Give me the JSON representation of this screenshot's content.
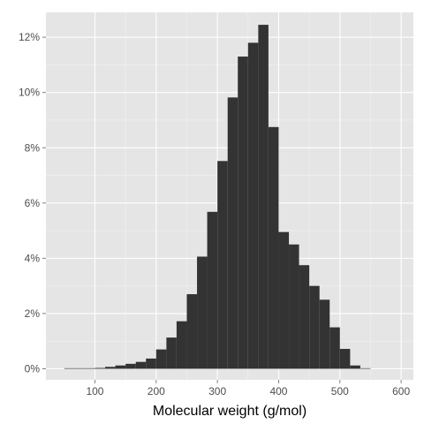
{
  "colors": {
    "panel_background": "#e5e5e5",
    "grid_major": "#ffffff",
    "grid_minor": "#f2f2f2",
    "bar_fill": "#333333",
    "tick_text": "#4d4d4d"
  },
  "chart_data": {
    "type": "bar",
    "subtype": "histogram",
    "title": "",
    "xlabel": "Molecular weight (g/mol)",
    "ylabel": "",
    "xlim": [
      20,
      620
    ],
    "ylim": [
      -0.4,
      12.9
    ],
    "x_ticks": [
      100,
      200,
      300,
      400,
      500,
      600
    ],
    "y_ticks": [
      0,
      2,
      4,
      6,
      8,
      10,
      12
    ],
    "y_tick_labels": [
      "0%",
      "2%",
      "4%",
      "6%",
      "8%",
      "10%",
      "12%"
    ],
    "grid": true,
    "legend": "none",
    "bin_width": 16.667,
    "bins": [
      {
        "start": 50.0,
        "end": 66.7,
        "value": 0.02
      },
      {
        "start": 66.7,
        "end": 83.3,
        "value": 0.02
      },
      {
        "start": 83.3,
        "end": 100.0,
        "value": 0.02
      },
      {
        "start": 100.0,
        "end": 116.7,
        "value": 0.03
      },
      {
        "start": 116.7,
        "end": 133.3,
        "value": 0.07
      },
      {
        "start": 133.3,
        "end": 150.0,
        "value": 0.12
      },
      {
        "start": 150.0,
        "end": 166.7,
        "value": 0.18
      },
      {
        "start": 166.7,
        "end": 183.3,
        "value": 0.25
      },
      {
        "start": 183.3,
        "end": 200.0,
        "value": 0.37
      },
      {
        "start": 200.0,
        "end": 216.7,
        "value": 0.7
      },
      {
        "start": 216.7,
        "end": 233.3,
        "value": 1.13
      },
      {
        "start": 233.3,
        "end": 250.0,
        "value": 1.72
      },
      {
        "start": 250.0,
        "end": 266.7,
        "value": 2.7
      },
      {
        "start": 266.7,
        "end": 283.3,
        "value": 4.06
      },
      {
        "start": 283.3,
        "end": 300.0,
        "value": 5.68
      },
      {
        "start": 300.0,
        "end": 316.7,
        "value": 7.52
      },
      {
        "start": 316.7,
        "end": 333.3,
        "value": 9.82
      },
      {
        "start": 333.3,
        "end": 350.0,
        "value": 11.3
      },
      {
        "start": 350.0,
        "end": 366.7,
        "value": 11.8
      },
      {
        "start": 366.7,
        "end": 383.3,
        "value": 12.45
      },
      {
        "start": 383.3,
        "end": 400.0,
        "value": 8.75
      },
      {
        "start": 400.0,
        "end": 416.7,
        "value": 4.95
      },
      {
        "start": 416.7,
        "end": 433.3,
        "value": 4.5
      },
      {
        "start": 433.3,
        "end": 450.0,
        "value": 3.75
      },
      {
        "start": 450.0,
        "end": 466.7,
        "value": 3.0
      },
      {
        "start": 466.7,
        "end": 483.3,
        "value": 2.5
      },
      {
        "start": 483.3,
        "end": 500.0,
        "value": 1.5
      },
      {
        "start": 500.0,
        "end": 516.7,
        "value": 0.72
      },
      {
        "start": 516.7,
        "end": 533.3,
        "value": 0.12
      },
      {
        "start": 533.3,
        "end": 550.0,
        "value": 0.02
      }
    ]
  }
}
